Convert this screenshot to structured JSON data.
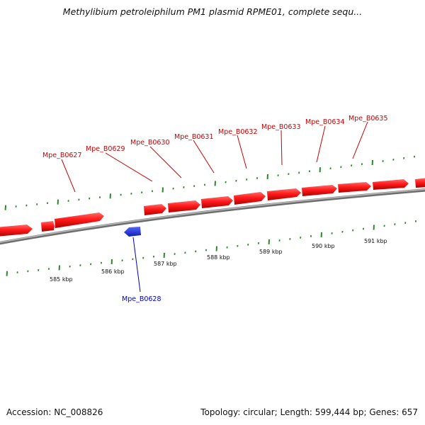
{
  "title": "Methylibium petroleiphilum PM1 plasmid RPME01, complete sequ...",
  "footer": {
    "accession": "Accession: NC_008826",
    "summary": "Topology: circular; Length: 599,444 bp; Genes: 657"
  },
  "colors": {
    "forward_gene": "#ff1a1a",
    "reverse_gene": "#2233dd",
    "tick": "#2a8a2a",
    "backbone": "#8c8c8c",
    "forward_label": "#cc0000",
    "reverse_label": "#0000bb"
  },
  "scale_labels": [
    "585 kbp",
    "586 kbp",
    "587 kbp",
    "588 kbp",
    "589 kbp",
    "590 kbp",
    "591 kbp"
  ],
  "genes": [
    {
      "id": "Mpe_B0627",
      "strand": "+"
    },
    {
      "id": "Mpe_B0628",
      "strand": "-"
    },
    {
      "id": "Mpe_B0629",
      "strand": "+"
    },
    {
      "id": "Mpe_B0630",
      "strand": "+"
    },
    {
      "id": "Mpe_B0631",
      "strand": "+"
    },
    {
      "id": "Mpe_B0632",
      "strand": "+"
    },
    {
      "id": "Mpe_B0633",
      "strand": "+"
    },
    {
      "id": "Mpe_B0634",
      "strand": "+"
    },
    {
      "id": "Mpe_B0635",
      "strand": "+"
    }
  ]
}
